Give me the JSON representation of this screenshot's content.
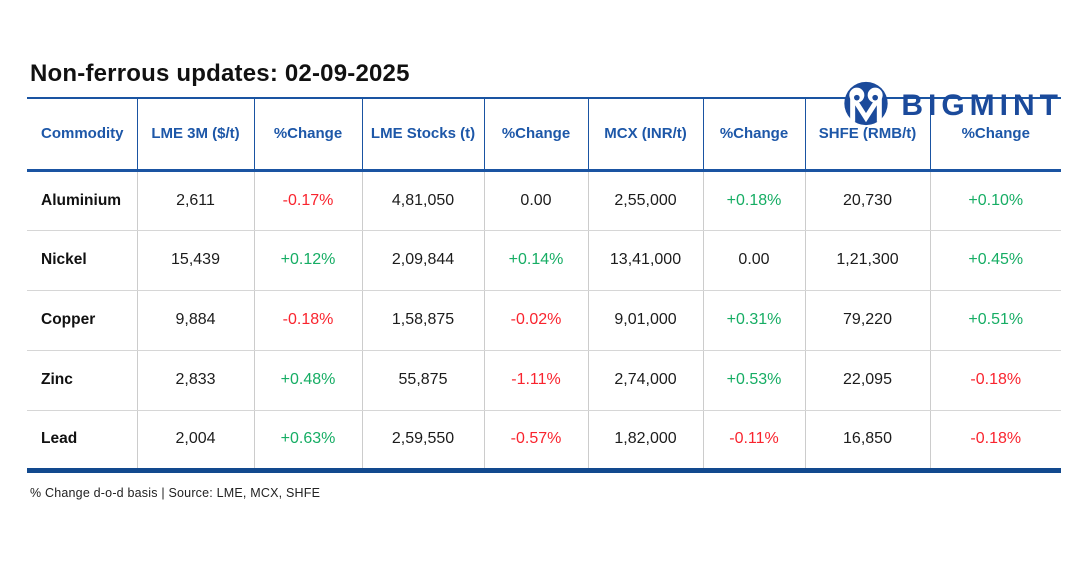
{
  "brand": {
    "name": "BIGMINT",
    "icon": "bigmint-owl-icon",
    "color": "#1b4a9b"
  },
  "title": "Non-ferrous updates: 02-09-2025",
  "footer_note": "% Change d-o-d basis | Source: LME, MCX, SHFE",
  "colors": {
    "brand_blue": "#1b4a9b",
    "header_text_blue": "#1d57a8",
    "border_navy": "#12498e",
    "positive_green": "#16ad64",
    "negative_red": "#f9242e",
    "grid_gray": "#cccccc"
  },
  "chart_data": {
    "type": "table",
    "title": "Non-ferrous updates: 02-09-2025",
    "columns": [
      "Commodity",
      "LME 3M ($/t)",
      "%Change",
      "LME Stocks (t)",
      "%Change",
      "MCX (INR/t)",
      "%Change",
      "SHFE (RMB/t)",
      "%Change"
    ],
    "rows": [
      {
        "cells": [
          {
            "value": "Aluminium",
            "trend": "label"
          },
          {
            "value": "2,611",
            "trend": "neutral"
          },
          {
            "value": "-0.17%",
            "trend": "down"
          },
          {
            "value": "4,81,050",
            "trend": "neutral"
          },
          {
            "value": "0.00",
            "trend": "neutral"
          },
          {
            "value": "2,55,000",
            "trend": "neutral"
          },
          {
            "value": "+0.18%",
            "trend": "up"
          },
          {
            "value": "20,730",
            "trend": "neutral"
          },
          {
            "value": "+0.10%",
            "trend": "up"
          }
        ]
      },
      {
        "cells": [
          {
            "value": "Nickel",
            "trend": "label"
          },
          {
            "value": "15,439",
            "trend": "neutral"
          },
          {
            "value": "+0.12%",
            "trend": "up"
          },
          {
            "value": "2,09,844",
            "trend": "neutral"
          },
          {
            "value": "+0.14%",
            "trend": "up"
          },
          {
            "value": "13,41,000",
            "trend": "neutral"
          },
          {
            "value": "0.00",
            "trend": "neutral"
          },
          {
            "value": "1,21,300",
            "trend": "neutral"
          },
          {
            "value": "+0.45%",
            "trend": "up"
          }
        ]
      },
      {
        "cells": [
          {
            "value": "Copper",
            "trend": "label"
          },
          {
            "value": "9,884",
            "trend": "neutral"
          },
          {
            "value": "-0.18%",
            "trend": "down"
          },
          {
            "value": "1,58,875",
            "trend": "neutral"
          },
          {
            "value": "-0.02%",
            "trend": "down"
          },
          {
            "value": "9,01,000",
            "trend": "neutral"
          },
          {
            "value": "+0.31%",
            "trend": "up"
          },
          {
            "value": "79,220",
            "trend": "neutral"
          },
          {
            "value": "+0.51%",
            "trend": "up"
          }
        ]
      },
      {
        "cells": [
          {
            "value": "Zinc",
            "trend": "label"
          },
          {
            "value": "2,833",
            "trend": "neutral"
          },
          {
            "value": "+0.48%",
            "trend": "up"
          },
          {
            "value": "55,875",
            "trend": "neutral"
          },
          {
            "value": "-1.11%",
            "trend": "down"
          },
          {
            "value": "2,74,000",
            "trend": "neutral"
          },
          {
            "value": "+0.53%",
            "trend": "up"
          },
          {
            "value": "22,095",
            "trend": "neutral"
          },
          {
            "value": "-0.18%",
            "trend": "down"
          }
        ]
      },
      {
        "cells": [
          {
            "value": "Lead",
            "trend": "label"
          },
          {
            "value": "2,004",
            "trend": "neutral"
          },
          {
            "value": "+0.63%",
            "trend": "up"
          },
          {
            "value": "2,59,550",
            "trend": "neutral"
          },
          {
            "value": "-0.57%",
            "trend": "down"
          },
          {
            "value": "1,82,000",
            "trend": "neutral"
          },
          {
            "value": "-0.11%",
            "trend": "down"
          },
          {
            "value": "16,850",
            "trend": "neutral"
          },
          {
            "value": "-0.18%",
            "trend": "down"
          }
        ]
      }
    ]
  }
}
